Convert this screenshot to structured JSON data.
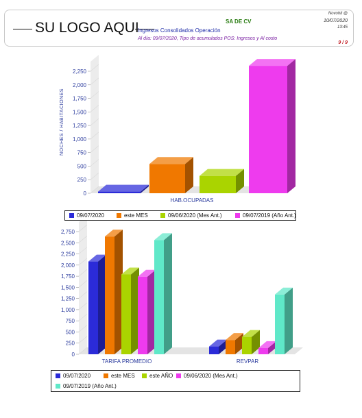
{
  "header": {
    "logo_text": "SU LOGO AQUI",
    "company": "SA DE CV",
    "report_title": "Ingresos Consolidados Operación",
    "subtitle": "Al día: 09/07/2020, Tipo de acumulados POS: Ingresos y Al costo",
    "app_name": "Novohit @",
    "date": "10/07/2020",
    "time": "13:45",
    "page": "9 / 9"
  },
  "chart_data": [
    {
      "type": "bar",
      "ylabel": "NOCHES / HABITACIONES",
      "xlabel": "",
      "categories": [
        "HAB.OCUPADAS"
      ],
      "ylim": [
        0,
        2250
      ],
      "yticks": [
        "0",
        "250",
        "500",
        "750",
        "1,000",
        "1,250",
        "1,500",
        "1,750",
        "2,000",
        "2,250"
      ],
      "series": [
        {
          "name": "09/07/2020",
          "color": "#2b2bd8",
          "values": [
            30
          ]
        },
        {
          "name": "este MES",
          "color": "#f07800",
          "values": [
            540
          ]
        },
        {
          "name": "09/06/2020 (Mes Ant.)",
          "color": "#aad400",
          "values": [
            320
          ]
        },
        {
          "name": "09/07/2019 (Año Ant.)",
          "color": "#ee3bee",
          "values": [
            2350
          ]
        }
      ],
      "legend_position": "bottom"
    },
    {
      "type": "bar",
      "ylabel": "",
      "xlabel": "",
      "categories": [
        "TARIFA PROMEDIO",
        "REVPAR"
      ],
      "ylim": [
        0,
        2750
      ],
      "yticks": [
        "0",
        "250",
        "500",
        "750",
        "1,000",
        "1,250",
        "1,500",
        "1,750",
        "2,000",
        "2,250",
        "2,500",
        "2,750"
      ],
      "series": [
        {
          "name": "09/07/2020",
          "color": "#2b2bd8",
          "values": [
            2080,
            175
          ]
        },
        {
          "name": "este MES",
          "color": "#f07800",
          "values": [
            2640,
            320
          ]
        },
        {
          "name": "este AÑO",
          "color": "#aad400",
          "values": [
            1790,
            390
          ]
        },
        {
          "name": "09/06/2020 (Mes Ant.)",
          "color": "#ee3bee",
          "values": [
            1740,
            140
          ]
        },
        {
          "name": "09/07/2019 (Año Ant.)",
          "color": "#5fe8c8",
          "values": [
            2560,
            1340
          ]
        }
      ],
      "legend_position": "bottom"
    }
  ]
}
